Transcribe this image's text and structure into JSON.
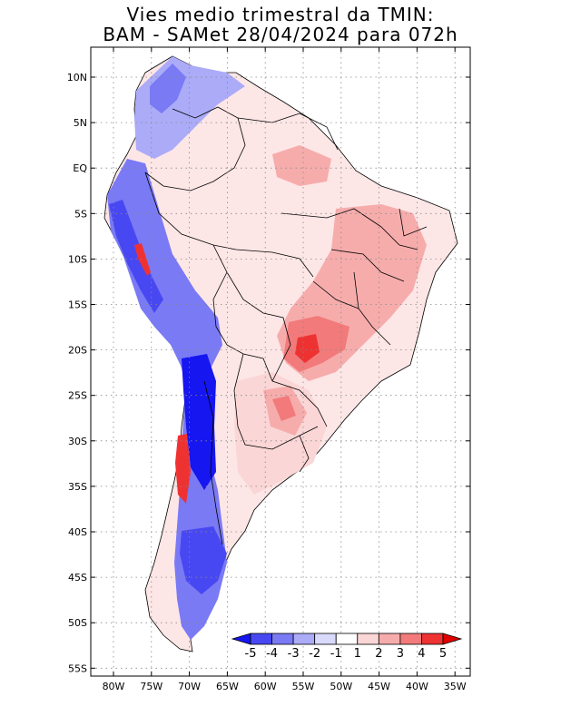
{
  "title_line1": "Vies medio trimestral da TMIN:",
  "title_line2": "BAM - SAMet 28/04/2024  para 072h",
  "lat_labels": [
    "10N",
    "5N",
    "EQ",
    "5S",
    "10S",
    "15S",
    "20S",
    "25S",
    "30S",
    "35S",
    "40S",
    "45S",
    "50S",
    "55S"
  ],
  "lon_labels": [
    "80W",
    "75W",
    "70W",
    "65W",
    "60W",
    "55W",
    "50W",
    "45W",
    "40W",
    "35W"
  ],
  "colorbar": {
    "labels": [
      "-5",
      "-4",
      "-3",
      "-2",
      "-1",
      "1",
      "2",
      "3",
      "4",
      "5"
    ],
    "colors": [
      "#1616f0",
      "#4848f2",
      "#7a7af5",
      "#ababf8",
      "#d9d9fb",
      "#ffffff",
      "#fbd6d6",
      "#f7acac",
      "#f27a7a",
      "#ee3232",
      "#e00000"
    ]
  }
}
